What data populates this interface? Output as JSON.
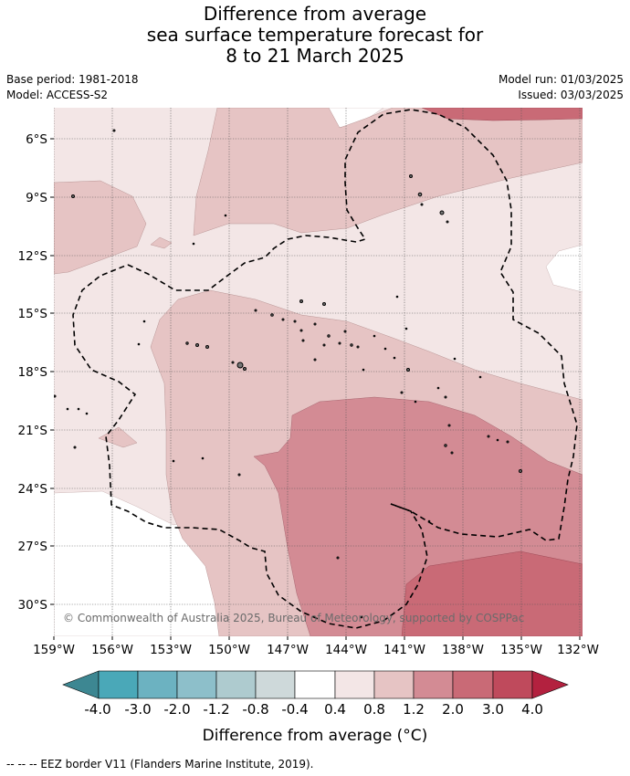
{
  "title": {
    "line1": "Difference from average",
    "line2": "sea surface temperature forecast for",
    "line3": "8 to 21 March 2025"
  },
  "meta": {
    "base_period": "Base period: 1981-2018",
    "model": "Model: ACCESS-S2",
    "model_run": "Model run: 01/03/2025",
    "issued": "Issued: 03/03/2025"
  },
  "map": {
    "copyright": "© Commonwealth of Australia 2025, Bureau of Meteorology, supported by COSPPac",
    "lat_labels": [
      "6°S",
      "9°S",
      "12°S",
      "15°S",
      "18°S",
      "21°S",
      "24°S",
      "27°S",
      "30°S"
    ],
    "lon_labels": [
      "159°W",
      "156°W",
      "153°W",
      "150°W",
      "147°W",
      "144°W",
      "141°W",
      "138°W",
      "135°W",
      "132°W"
    ],
    "colors": {
      "band_0.4_0.8": "#f3e6e6",
      "band_0.8_1.2": "#e6c4c4",
      "band_1.2_2.0": "#d38b94",
      "band_2.0_3.0": "#c96a76",
      "eez_line": "#000000"
    }
  },
  "colorbar": {
    "ticks": [
      "-4.0",
      "-3.0",
      "-2.0",
      "-1.2",
      "-0.8",
      "-0.4",
      "0.4",
      "0.8",
      "1.2",
      "2.0",
      "3.0",
      "4.0"
    ],
    "colors": [
      "#3d8792",
      "#4aa8b8",
      "#6cb2c1",
      "#8dbfca",
      "#aecbcf",
      "#ced9da",
      "#ffffff",
      "#f3e6e6",
      "#e6c4c4",
      "#d38b94",
      "#c96a76",
      "#bf4a5c",
      "#b3213f"
    ],
    "label": "Difference from average (°C)"
  },
  "footnote": "--  --  -- EEZ border V11 (Flanders Marine Institute, 2019)."
}
